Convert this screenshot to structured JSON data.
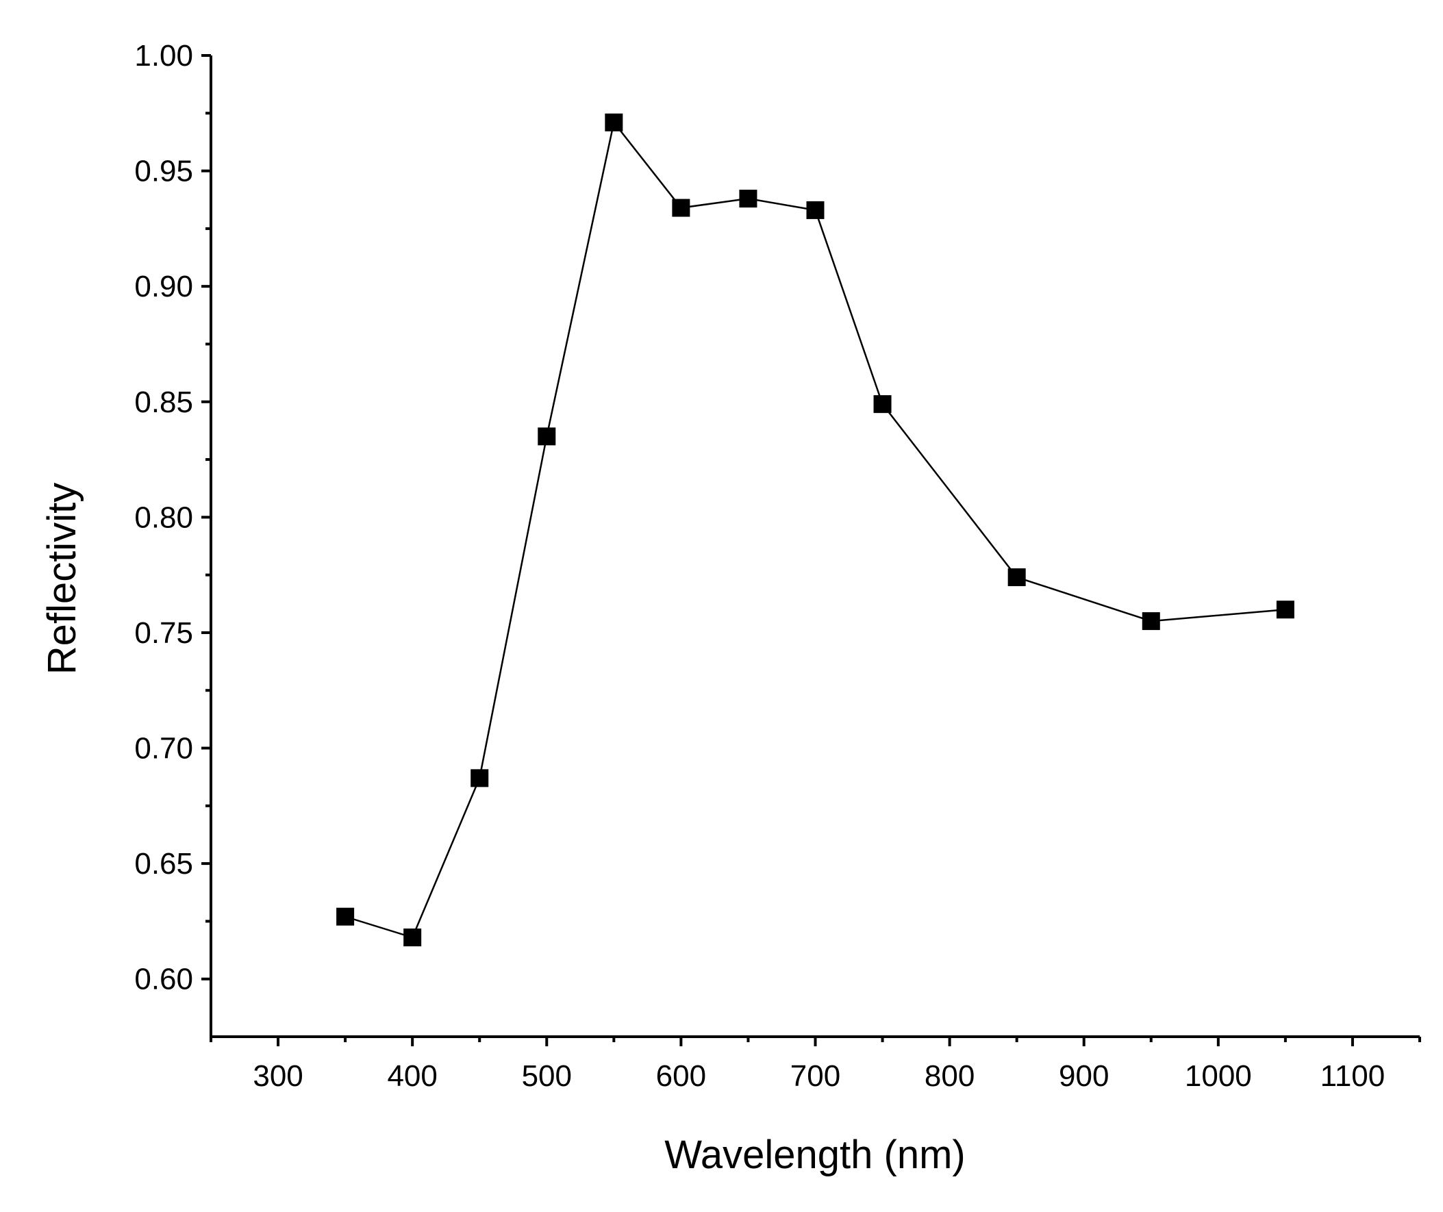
{
  "chart_data": {
    "type": "line",
    "title": "",
    "xlabel": "Wavelength (nm)",
    "ylabel": "Reflectivity",
    "xlim": [
      250,
      1150
    ],
    "ylim": [
      0.575,
      1.0
    ],
    "x_ticks": [
      300,
      400,
      500,
      600,
      700,
      800,
      900,
      1000,
      1100
    ],
    "x_tick_labels": [
      "300",
      "400",
      "500",
      "600",
      "700",
      "800",
      "900",
      "1000",
      "1100"
    ],
    "y_ticks": [
      0.6,
      0.65,
      0.7,
      0.75,
      0.8,
      0.85,
      0.9,
      0.95,
      1.0
    ],
    "y_tick_labels": [
      "0.60",
      "0.65",
      "0.70",
      "0.75",
      "0.80",
      "0.85",
      "0.90",
      "0.95",
      "1.00"
    ],
    "grid": false,
    "series": [
      {
        "name": "Reflectivity",
        "marker": "square",
        "color": "#000000",
        "x": [
          350,
          400,
          450,
          500,
          550,
          600,
          650,
          700,
          750,
          850,
          950,
          1050
        ],
        "y": [
          0.627,
          0.618,
          0.687,
          0.835,
          0.971,
          0.934,
          0.938,
          0.933,
          0.849,
          0.774,
          0.755,
          0.76
        ]
      }
    ]
  }
}
